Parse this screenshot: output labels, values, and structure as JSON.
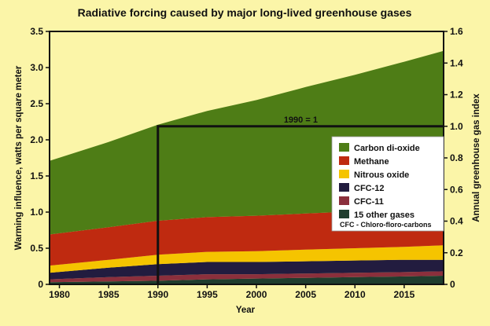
{
  "chart_data": {
    "type": "area",
    "stacked": true,
    "title": "Radiative forcing caused by major long-lived greenhouse gases",
    "xlabel": "Year",
    "ylabel": "Warming influence, watts per square meter",
    "y2label": "Annual greenhouse gas index",
    "xlim": [
      1979,
      2019
    ],
    "ylim": [
      0,
      3.5
    ],
    "y2lim": [
      0,
      1.6
    ],
    "x_ticks": [
      "1980",
      "1985",
      "1990",
      "1995",
      "2000",
      "2005",
      "2010",
      "2015"
    ],
    "x_tick_values": [
      1980,
      1985,
      1990,
      1995,
      2000,
      2005,
      2010,
      2015
    ],
    "y_ticks": [
      "0",
      "0.5",
      "1.0",
      "1.5",
      "2.0",
      "2.5",
      "3.0",
      "3.5"
    ],
    "y_tick_values": [
      0,
      0.5,
      1.0,
      1.5,
      2.0,
      2.5,
      3.0,
      3.5
    ],
    "y2_ticks": [
      "0",
      "0.2",
      "0.4",
      "0.6",
      "0.8",
      "1.0",
      "1.2",
      "1.4",
      "1.6"
    ],
    "y2_tick_values": [
      0,
      0.2,
      0.4,
      0.6,
      0.8,
      1.0,
      1.2,
      1.4,
      1.6
    ],
    "x": [
      1979,
      1985,
      1990,
      1995,
      2000,
      2005,
      2010,
      2015,
      2019
    ],
    "series": [
      {
        "name": "15 other gases",
        "color": "#1f3d2e",
        "values": [
          0.03,
          0.04,
          0.05,
          0.07,
          0.08,
          0.09,
          0.1,
          0.11,
          0.12
        ]
      },
      {
        "name": "CFC-11",
        "color": "#8b2f3c",
        "values": [
          0.04,
          0.06,
          0.07,
          0.07,
          0.06,
          0.06,
          0.06,
          0.06,
          0.06
        ]
      },
      {
        "name": "CFC-12",
        "color": "#221c3f",
        "values": [
          0.09,
          0.13,
          0.16,
          0.17,
          0.17,
          0.17,
          0.17,
          0.17,
          0.16
        ]
      },
      {
        "name": "Nitrous oxide",
        "color": "#f5c400",
        "values": [
          0.1,
          0.11,
          0.13,
          0.14,
          0.15,
          0.16,
          0.17,
          0.18,
          0.2
        ]
      },
      {
        "name": "Methane",
        "color": "#bf2a10",
        "values": [
          0.43,
          0.45,
          0.47,
          0.48,
          0.49,
          0.5,
          0.51,
          0.52,
          0.53
        ]
      },
      {
        "name": "Carbon di-oxide",
        "color": "#4e7d16",
        "values": [
          1.02,
          1.18,
          1.33,
          1.47,
          1.6,
          1.75,
          1.89,
          2.04,
          2.16
        ]
      }
    ],
    "legend_order": [
      "Carbon di-oxide",
      "Methane",
      "Nitrous oxide",
      "CFC-12",
      "CFC-11",
      "15 other gases"
    ],
    "legend_position": "right",
    "legend_note": "CFC - Chloro-floro-carbons",
    "reference": {
      "label": "1990 = 1",
      "x": 1990,
      "y2": 1.0
    }
  }
}
